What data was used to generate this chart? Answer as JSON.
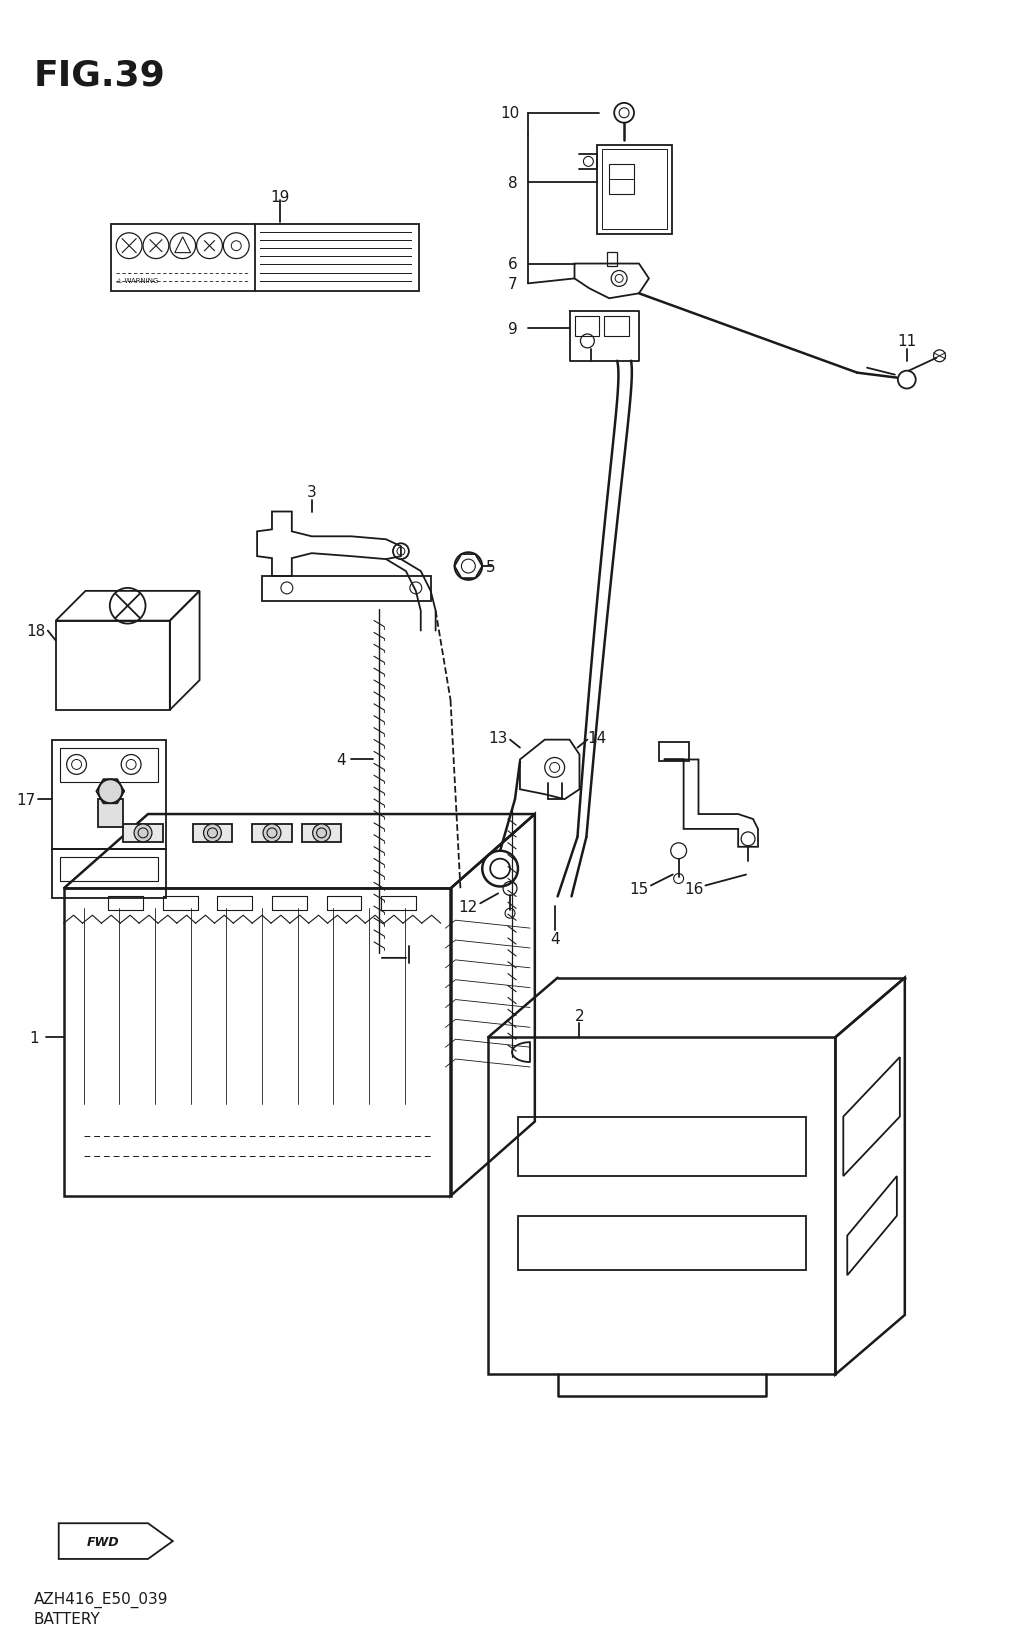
{
  "title": "FIG.39",
  "subtitle1": "AZH416_E50_039",
  "subtitle2": "BATTERY",
  "bg_color": "#ffffff",
  "lc": "#1a1a1a",
  "figsize": [
    10.27,
    16.4
  ],
  "dpi": 100
}
